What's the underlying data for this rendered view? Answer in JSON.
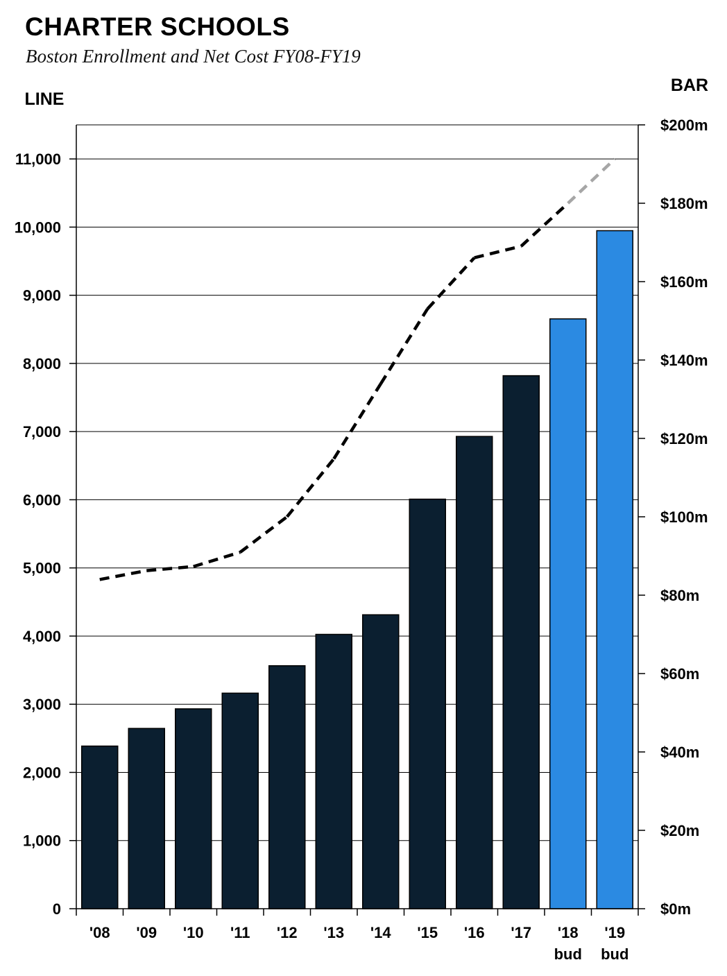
{
  "title": "CHARTER SCHOOLS",
  "subtitle": "Boston Enrollment and Net Cost FY08-FY19",
  "chart_data": {
    "type": "bar",
    "title": "CHARTER SCHOOLS",
    "subtitle": "Boston Enrollment and Net Cost FY08-FY19",
    "left_axis_label": "LINE",
    "right_axis_label": "BAR",
    "categories": [
      [
        "'08"
      ],
      [
        "'09"
      ],
      [
        "'10"
      ],
      [
        "'11"
      ],
      [
        "'12"
      ],
      [
        "'13"
      ],
      [
        "'14"
      ],
      [
        "'15"
      ],
      [
        "'16"
      ],
      [
        "'17"
      ],
      [
        "'18",
        "bud"
      ],
      [
        "'19",
        "bud"
      ]
    ],
    "left_axis": {
      "ylim": [
        0,
        11500
      ],
      "ticks": [
        0,
        1000,
        2000,
        3000,
        4000,
        5000,
        6000,
        7000,
        8000,
        9000,
        10000,
        11000
      ],
      "tick_labels": [
        "0",
        "1,000",
        "2,000",
        "3,000",
        "4,000",
        "5,000",
        "6,000",
        "7,000",
        "8,000",
        "9,000",
        "10,000",
        "11,000"
      ]
    },
    "right_axis": {
      "ylim": [
        0,
        200
      ],
      "ticks": [
        0,
        20,
        40,
        60,
        80,
        100,
        120,
        140,
        160,
        180,
        200
      ],
      "tick_labels": [
        "$0m",
        "$20m",
        "$40m",
        "$60m",
        "$80m",
        "$100m",
        "$120m",
        "$140m",
        "$160m",
        "$180m",
        "$200m"
      ]
    },
    "bar_series": {
      "axis": "right",
      "values": [
        41.5,
        46,
        51,
        55,
        62,
        70,
        75,
        104.5,
        120.5,
        136,
        150.5,
        173
      ],
      "budget_flags": [
        false,
        false,
        false,
        false,
        false,
        false,
        false,
        false,
        false,
        false,
        true,
        true
      ]
    },
    "line_series": {
      "axis": "left",
      "style": "dashed",
      "values": [
        4830,
        4960,
        5020,
        5230,
        5750,
        6600,
        7700,
        8800,
        9550,
        9720,
        10350,
        11000
      ],
      "budget_flags": [
        false,
        false,
        false,
        false,
        false,
        false,
        false,
        false,
        false,
        false,
        true,
        true
      ]
    },
    "grid": true
  },
  "colors": {
    "actual_bar": "#0b1f30",
    "budget_bar": "#2b8ae2",
    "line_actual": "#000000",
    "line_budget": "#a6a6a6",
    "gridline": "#000000"
  }
}
